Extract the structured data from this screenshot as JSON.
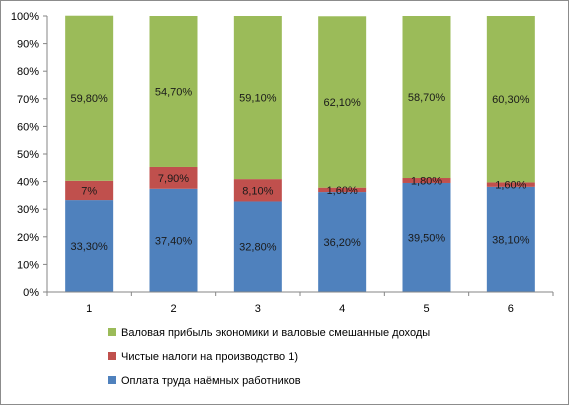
{
  "chart_data": {
    "type": "bar",
    "stacked": true,
    "normalized": true,
    "categories": [
      "1",
      "2",
      "3",
      "4",
      "5",
      "6"
    ],
    "series": [
      {
        "name": "Оплата труда наёмных работников",
        "values": [
          33.3,
          37.4,
          32.8,
          36.2,
          39.5,
          38.1
        ],
        "labels": [
          "33,30%",
          "37,40%",
          "32,80%",
          "36,20%",
          "39,50%",
          "38,10%"
        ],
        "color": "#4f81bd"
      },
      {
        "name": "Чистые налоги на производство 1)",
        "values": [
          7.0,
          7.9,
          8.1,
          1.6,
          1.8,
          1.6
        ],
        "labels": [
          "7%",
          "7,90%",
          "8,10%",
          "1,60%",
          "1,80%",
          "1,60%"
        ],
        "color": "#c0504d"
      },
      {
        "name": "Валовая прибыль экономики и валовые смешанные доходы",
        "values": [
          59.8,
          54.7,
          59.1,
          62.1,
          58.7,
          60.3
        ],
        "labels": [
          "59,80%",
          "54,70%",
          "59,10%",
          "62,10%",
          "58,70%",
          "60,30%"
        ],
        "color": "#9bbb59"
      }
    ],
    "yticks": [
      "0%",
      "10%",
      "20%",
      "30%",
      "40%",
      "50%",
      "60%",
      "70%",
      "80%",
      "90%",
      "100%"
    ],
    "ylim": [
      0,
      100
    ],
    "grid": false,
    "legend_position": "bottom"
  }
}
